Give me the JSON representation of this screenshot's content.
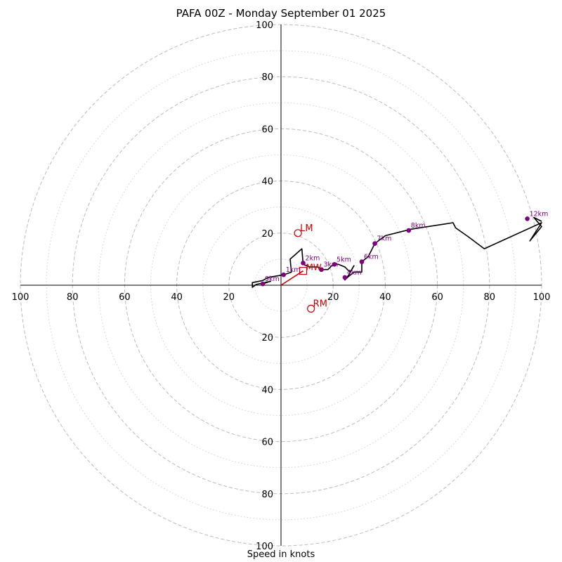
{
  "chart_data": {
    "type": "hodograph",
    "title": "PAFA 00Z - Monday September 01 2025",
    "xlabel": "Speed in knots",
    "rings": [
      20,
      40,
      60,
      80,
      100
    ],
    "minor_rings": [
      10,
      30,
      50,
      70,
      90
    ],
    "x_tick_labels": [
      "100",
      "80",
      "60",
      "40",
      "20",
      "20",
      "40",
      "60",
      "80",
      "100"
    ],
    "y_tick_labels": [
      "100",
      "80",
      "60",
      "40",
      "20",
      "20",
      "40",
      "60",
      "80",
      "100"
    ],
    "hodograph": [
      [
        -7,
        0.5
      ],
      [
        -4,
        1.5
      ],
      [
        -9.5,
        0.3
      ],
      [
        -11,
        -0.8
      ],
      [
        -11,
        1
      ],
      [
        -7,
        1.8
      ],
      [
        -5,
        3
      ],
      [
        1,
        4
      ],
      [
        4,
        5
      ],
      [
        3.5,
        10
      ],
      [
        8,
        14
      ],
      [
        8.5,
        8
      ],
      [
        11,
        7
      ],
      [
        14,
        7
      ],
      [
        16,
        6
      ],
      [
        18,
        6
      ],
      [
        20,
        8
      ],
      [
        22,
        8
      ],
      [
        24.5,
        7
      ],
      [
        26.5,
        5
      ],
      [
        28,
        7.5
      ],
      [
        26,
        4
      ],
      [
        24.5,
        2
      ],
      [
        25.5,
        3
      ],
      [
        28,
        5
      ],
      [
        31,
        5
      ],
      [
        31,
        9
      ],
      [
        33.5,
        11
      ],
      [
        36,
        16
      ],
      [
        40,
        19
      ],
      [
        50,
        21.5
      ],
      [
        66,
        24
      ],
      [
        67,
        22
      ],
      [
        72,
        18.5
      ],
      [
        78,
        14
      ],
      [
        100,
        24
      ],
      [
        95.5,
        17
      ],
      [
        100,
        22.5
      ],
      [
        97,
        26
      ],
      [
        100,
        24.5
      ]
    ],
    "height_markers": [
      {
        "label": "1km",
        "x": 1,
        "y": 4
      },
      {
        "label": "2km",
        "x": 8.5,
        "y": 8.5
      },
      {
        "label": "3km",
        "x": 15.5,
        "y": 6
      },
      {
        "label": "4km",
        "x": 24.5,
        "y": 3
      },
      {
        "label": "5km",
        "x": 20.5,
        "y": 8
      },
      {
        "label": "6km",
        "x": 31,
        "y": 9
      },
      {
        "label": "7km",
        "x": 36,
        "y": 16
      },
      {
        "label": "8km",
        "x": 49,
        "y": 21
      },
      {
        "label": "9km",
        "x": -7,
        "y": 0.5
      },
      {
        "label": "12km",
        "x": 94.5,
        "y": 25.5
      }
    ],
    "mean_wind": {
      "label": "MW",
      "x": 8.5,
      "y": 5.5
    },
    "left_mover": {
      "label": "LM",
      "x": 6.5,
      "y": 20
    },
    "right_mover": {
      "label": "RM",
      "x": 11.5,
      "y": -9
    },
    "shear_vector": [
      [
        0,
        0
      ],
      [
        8.5,
        5.5
      ]
    ],
    "colors": {
      "hodograph": "#000000",
      "markers": "#800080",
      "storm_motion": "#cc0000",
      "grid": "#bbbbbb"
    }
  }
}
